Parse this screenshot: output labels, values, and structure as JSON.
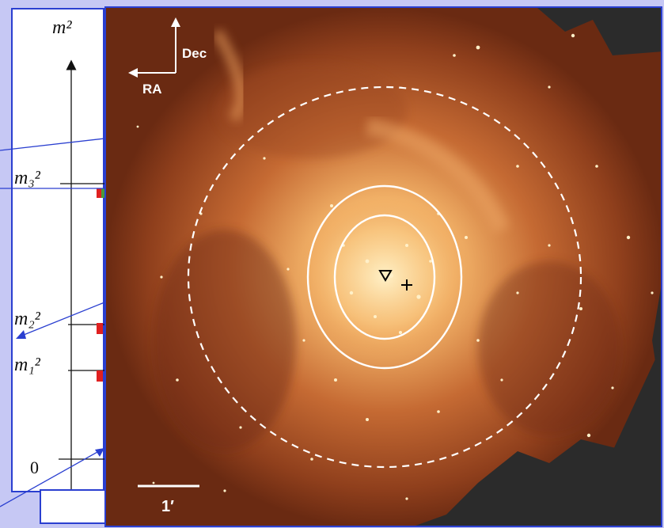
{
  "mass_spectrum": {
    "axis_label": "m²",
    "m3_label": "m₃²",
    "m2_label": "m₂²",
    "m1_label": "m₁²",
    "zero_label": "0"
  },
  "image": {
    "orientation_dec": "Dec",
    "orientation_ra": "RA",
    "scale_bar_label": "1′"
  },
  "colors": {
    "background": "#c6c8f4",
    "border": "#2a3fd0",
    "marker_red": "#e02020",
    "marker_green": "#4a9a3a"
  }
}
